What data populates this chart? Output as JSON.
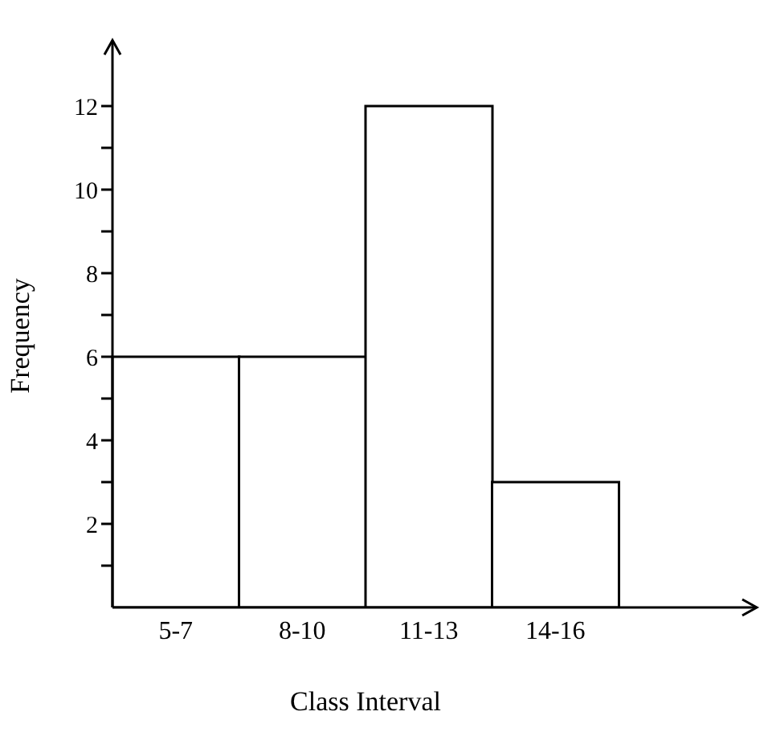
{
  "chart_data": {
    "type": "bar",
    "xlabel": "Class Interval",
    "ylabel": "Frequency",
    "categories": [
      "5-7",
      "8-10",
      "11-13",
      "14-16"
    ],
    "values": [
      6,
      6,
      12,
      3
    ],
    "color": "#ffffff",
    "ylim": [
      0,
      13
    ],
    "yticks": [
      {
        "value": 1,
        "label": null
      },
      2,
      {
        "value": 3,
        "label": null
      },
      4,
      {
        "value": 5,
        "label": null
      },
      6,
      {
        "value": 7,
        "label": null
      },
      8,
      {
        "value": 9,
        "label": null
      },
      10,
      {
        "value": 11,
        "label": null
      },
      12
    ],
    "grid": false,
    "legend": false
  }
}
